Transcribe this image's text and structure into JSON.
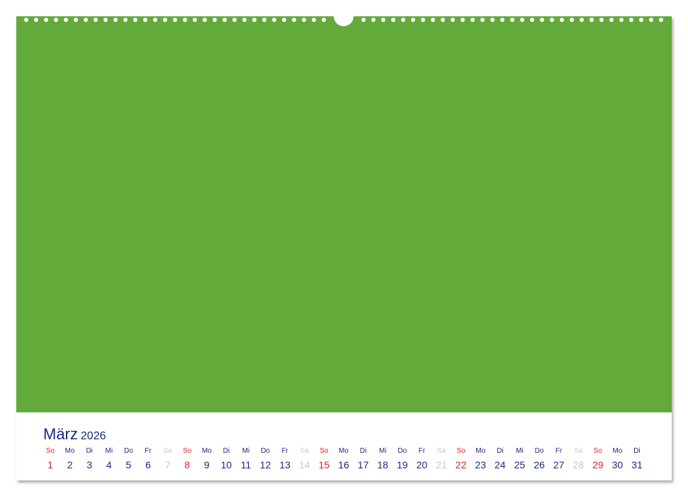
{
  "colors": {
    "photo": "#62ab3b",
    "text": "#1c2a80",
    "sunday": "#d9262c",
    "saturday": "#c8c8c8"
  },
  "calendar": {
    "month": "März",
    "year": "2026",
    "days": [
      {
        "wd": "So",
        "d": "1"
      },
      {
        "wd": "Mo",
        "d": "2"
      },
      {
        "wd": "Di",
        "d": "3"
      },
      {
        "wd": "Mi",
        "d": "4"
      },
      {
        "wd": "Do",
        "d": "5"
      },
      {
        "wd": "Fr",
        "d": "6"
      },
      {
        "wd": "Sa",
        "d": "7"
      },
      {
        "wd": "So",
        "d": "8"
      },
      {
        "wd": "Mo",
        "d": "9"
      },
      {
        "wd": "Di",
        "d": "10"
      },
      {
        "wd": "Mi",
        "d": "11"
      },
      {
        "wd": "Do",
        "d": "12"
      },
      {
        "wd": "Fr",
        "d": "13"
      },
      {
        "wd": "Sa",
        "d": "14"
      },
      {
        "wd": "So",
        "d": "15"
      },
      {
        "wd": "Mo",
        "d": "16"
      },
      {
        "wd": "Di",
        "d": "17"
      },
      {
        "wd": "Mi",
        "d": "18"
      },
      {
        "wd": "Do",
        "d": "19"
      },
      {
        "wd": "Fr",
        "d": "20"
      },
      {
        "wd": "Sa",
        "d": "21"
      },
      {
        "wd": "So",
        "d": "22"
      },
      {
        "wd": "Mo",
        "d": "23"
      },
      {
        "wd": "Di",
        "d": "24"
      },
      {
        "wd": "Mi",
        "d": "25"
      },
      {
        "wd": "Do",
        "d": "26"
      },
      {
        "wd": "Fr",
        "d": "27"
      },
      {
        "wd": "Sa",
        "d": "28"
      },
      {
        "wd": "So",
        "d": "29"
      },
      {
        "wd": "Mo",
        "d": "30"
      },
      {
        "wd": "Di",
        "d": "31"
      }
    ]
  }
}
